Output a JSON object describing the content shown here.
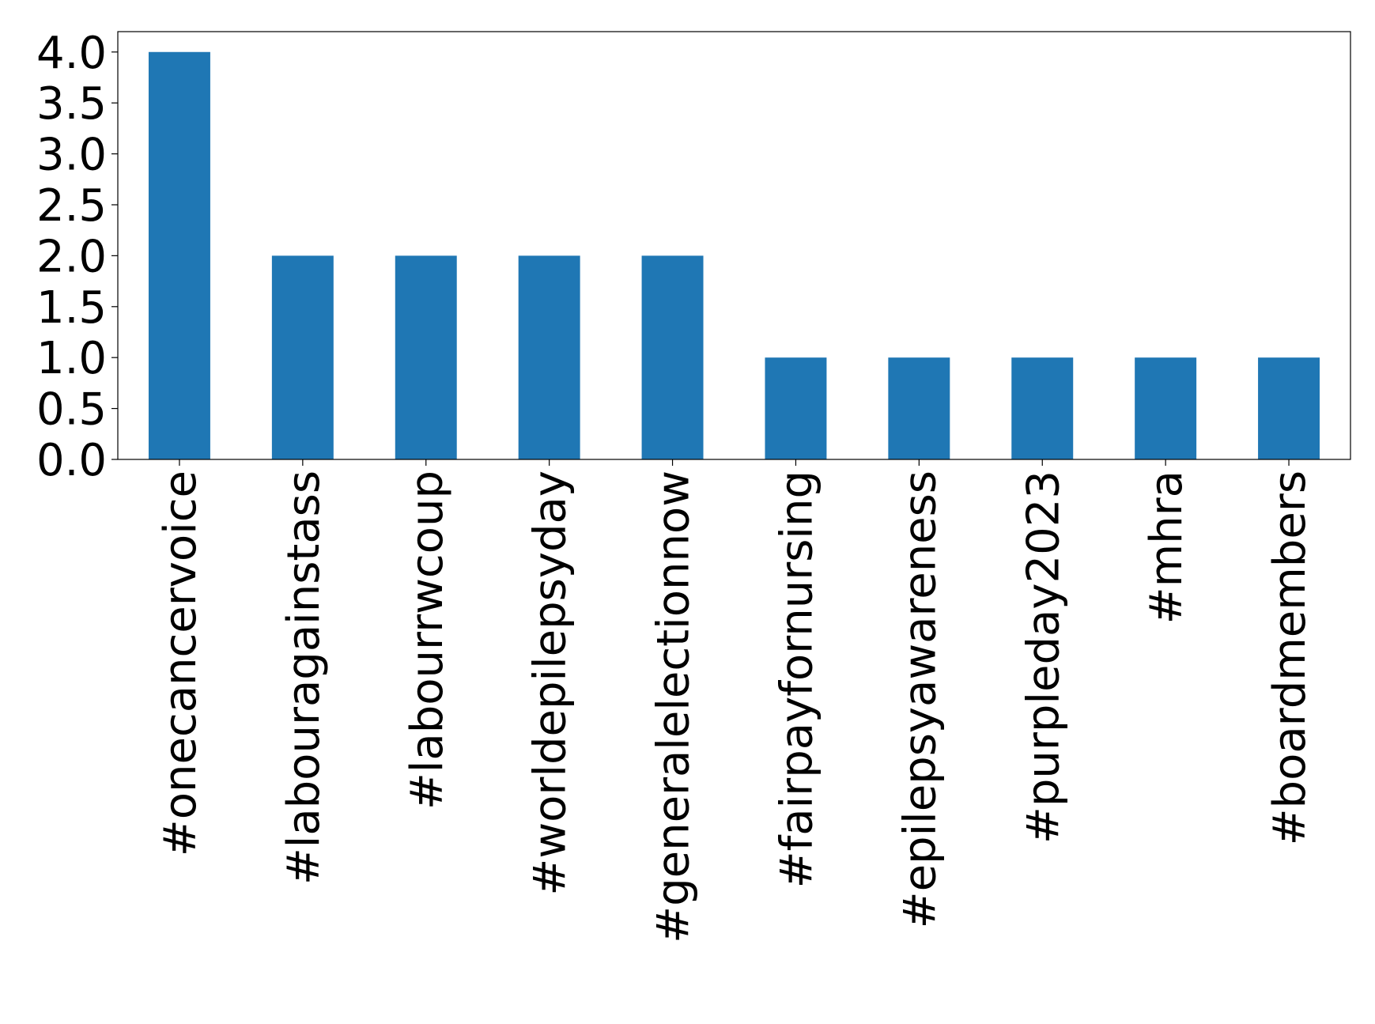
{
  "chart_data": {
    "type": "bar",
    "categories": [
      "#onecancervoice",
      "#labouragainstass",
      "#labourrwcoup",
      "#worldepilepsyday",
      "#generalelectionnow",
      "#fairpayfornursing",
      "#epilepsyawareness",
      "#purpleday2023",
      "#mhra",
      "#boardmembers"
    ],
    "values": [
      4,
      2,
      2,
      2,
      2,
      1,
      1,
      1,
      1,
      1
    ],
    "color": "#1f77b4",
    "ylim": [
      0,
      4.2
    ],
    "yticks": [
      {
        "value": 0,
        "label": "0.0"
      },
      0.5,
      {
        "value": 1,
        "label": "1.0"
      },
      1.5,
      {
        "value": 2,
        "label": "2.0"
      },
      2.5,
      {
        "value": 3,
        "label": "3.0"
      },
      3.5,
      {
        "value": 4,
        "label": "4.0"
      }
    ],
    "grid": false
  }
}
